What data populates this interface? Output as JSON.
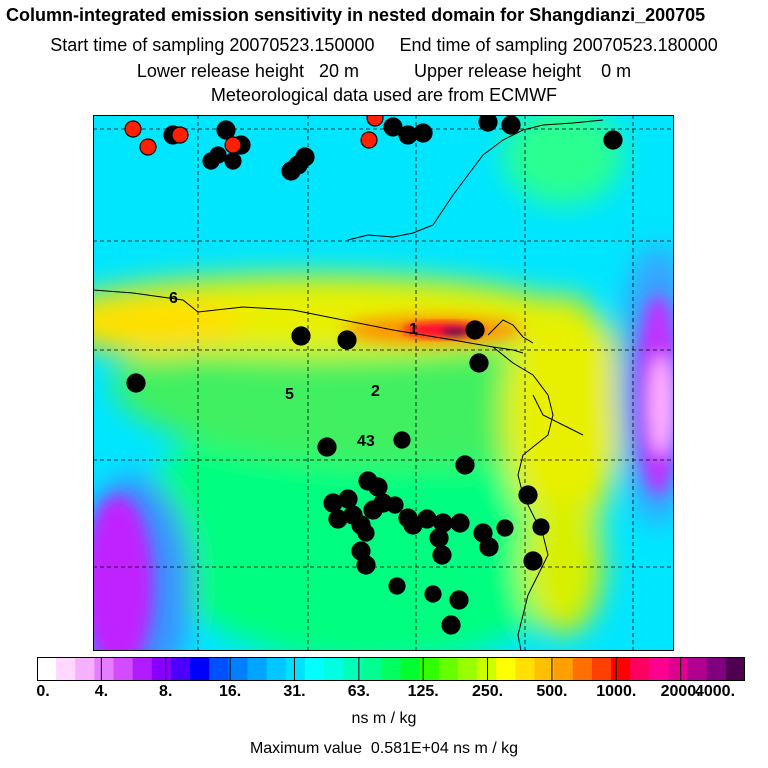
{
  "header": {
    "title": "Column-integrated emission sensitivity in nested domain for Shangdianzi_200705",
    "sampling": "Start time of sampling 20070523.150000     End time of sampling 20070523.180000",
    "release": "Lower release height   20 m           Upper release height    0 m",
    "met": "Meteorological data used are from ECMWF"
  },
  "map": {
    "labels": [
      "1",
      "2",
      "43",
      "5",
      "6"
    ],
    "colors": {
      "background": "#00e5ff",
      "low": "#ff00ff",
      "mid_low": "#3aa0ff",
      "mid": "#00ff80",
      "green": "#66e000",
      "yellow": "#e8f000",
      "orange": "#ff9000",
      "red": "#ff1030",
      "peak": "#601050",
      "marker_black": "#000000",
      "marker_red": "#ff2000"
    }
  },
  "colorbar": {
    "tick_labels": [
      "0.",
      "4.",
      "8.",
      "16.",
      "31.",
      "63.",
      "125.",
      "250.",
      "500.",
      "1000.",
      "2000.",
      "4000."
    ],
    "colors": [
      "#ffffff",
      "#ffd7ff",
      "#f5b0ff",
      "#e67cff",
      "#d24bff",
      "#b01cff",
      "#8800ff",
      "#4b00ff",
      "#0000ff",
      "#0050ff",
      "#0080ff",
      "#00a5ff",
      "#00c8ff",
      "#00e0ff",
      "#00ffff",
      "#00ffe0",
      "#00ffbb",
      "#00ff90",
      "#00ff60",
      "#00ff30",
      "#30ff00",
      "#66ff00",
      "#99ff00",
      "#ccff00",
      "#ffff00",
      "#ffe000",
      "#ffc000",
      "#ffa000",
      "#ff7000",
      "#ff4000",
      "#ff0000",
      "#ff0060",
      "#ff0090",
      "#e00090",
      "#b00090",
      "#800080",
      "#500050"
    ],
    "units": "ns m / kg"
  },
  "footer": {
    "max_value": "Maximum value  0.581E+04 ns m / kg"
  }
}
